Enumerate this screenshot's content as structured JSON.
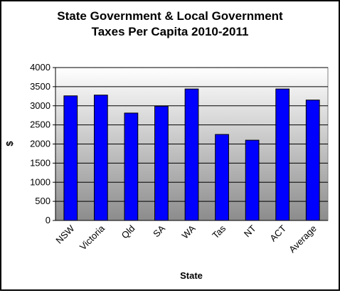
{
  "chart_data": {
    "type": "bar",
    "title_line1": "State Government & Local Government",
    "title_line2": "Taxes Per Capita 2010-2011",
    "xlabel": "State",
    "ylabel": "$",
    "categories": [
      "NSW",
      "Victoria",
      "Qld",
      "SA",
      "WA",
      "Tas",
      "NT",
      "ACT",
      "Average"
    ],
    "values": [
      3260,
      3280,
      2810,
      2990,
      3440,
      2250,
      2100,
      3440,
      3150
    ],
    "ylim": [
      0,
      4000
    ],
    "yticks": [
      "0",
      "500",
      "1000",
      "1500",
      "2000",
      "2500",
      "3000",
      "3500",
      "4000"
    ],
    "grid": true,
    "legend": "none",
    "bar_color": "#0000ff",
    "plot_gradient_top": "#ffffff",
    "plot_gradient_bottom": "#8c8c8c"
  }
}
